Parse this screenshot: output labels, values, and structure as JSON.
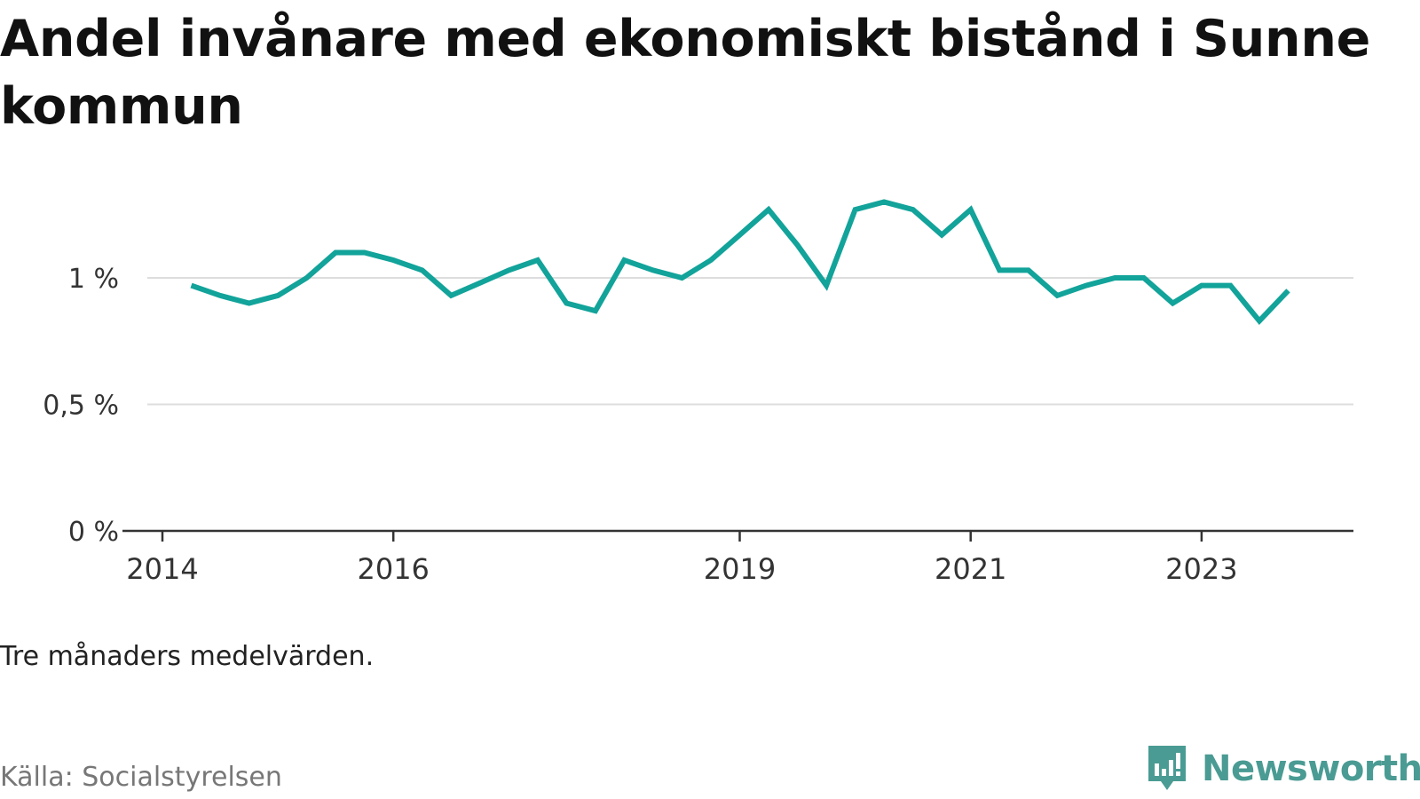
{
  "title": "Andel invånare med ekonomiskt bistånd i Sunne kommun",
  "note": "Tre månaders medelvärden.",
  "source": "Källa: Socialstyrelsen",
  "brand": {
    "name": "Newsworthy",
    "icon": "newsworthy-logo-icon",
    "color": "#4a9b93"
  },
  "chart_data": {
    "type": "line",
    "grid": true,
    "legend": "none",
    "color": "#12a39a",
    "ylim": [
      0,
      1.35
    ],
    "y_ticks": [
      {
        "value": 0,
        "label": "0 %"
      },
      {
        "value": 0.5,
        "label": "0,5 %"
      },
      {
        "value": 1,
        "label": "1 %"
      }
    ],
    "x_ticks": [
      {
        "value": "2014-01",
        "label": "2014"
      },
      {
        "value": "2016-01",
        "label": "2016"
      },
      {
        "value": "2019-01",
        "label": "2019"
      },
      {
        "value": "2021-01",
        "label": "2021"
      },
      {
        "value": "2023-01",
        "label": "2023"
      }
    ],
    "x": [
      "2014-04",
      "2014-07",
      "2014-10",
      "2015-01",
      "2015-04",
      "2015-07",
      "2015-10",
      "2016-01",
      "2016-04",
      "2016-07",
      "2016-10",
      "2017-01",
      "2017-04",
      "2017-07",
      "2017-10",
      "2018-01",
      "2018-04",
      "2018-07",
      "2018-10",
      "2019-01",
      "2019-04",
      "2019-07",
      "2019-10",
      "2020-01",
      "2020-04",
      "2020-07",
      "2020-10",
      "2021-01",
      "2021-04",
      "2021-07",
      "2021-10",
      "2022-01",
      "2022-04",
      "2022-07",
      "2022-10",
      "2023-01",
      "2023-04",
      "2023-07",
      "2023-10"
    ],
    "values": [
      0.97,
      0.93,
      0.9,
      0.93,
      1.0,
      1.1,
      1.1,
      1.07,
      1.03,
      0.93,
      0.98,
      1.03,
      1.07,
      0.9,
      0.87,
      1.07,
      1.03,
      1.0,
      1.07,
      1.17,
      1.27,
      1.13,
      0.97,
      1.27,
      1.3,
      1.27,
      1.17,
      1.27,
      1.03,
      1.03,
      0.93,
      0.97,
      1.0,
      1.0,
      0.9,
      0.97,
      0.97,
      0.83,
      0.95
    ]
  }
}
